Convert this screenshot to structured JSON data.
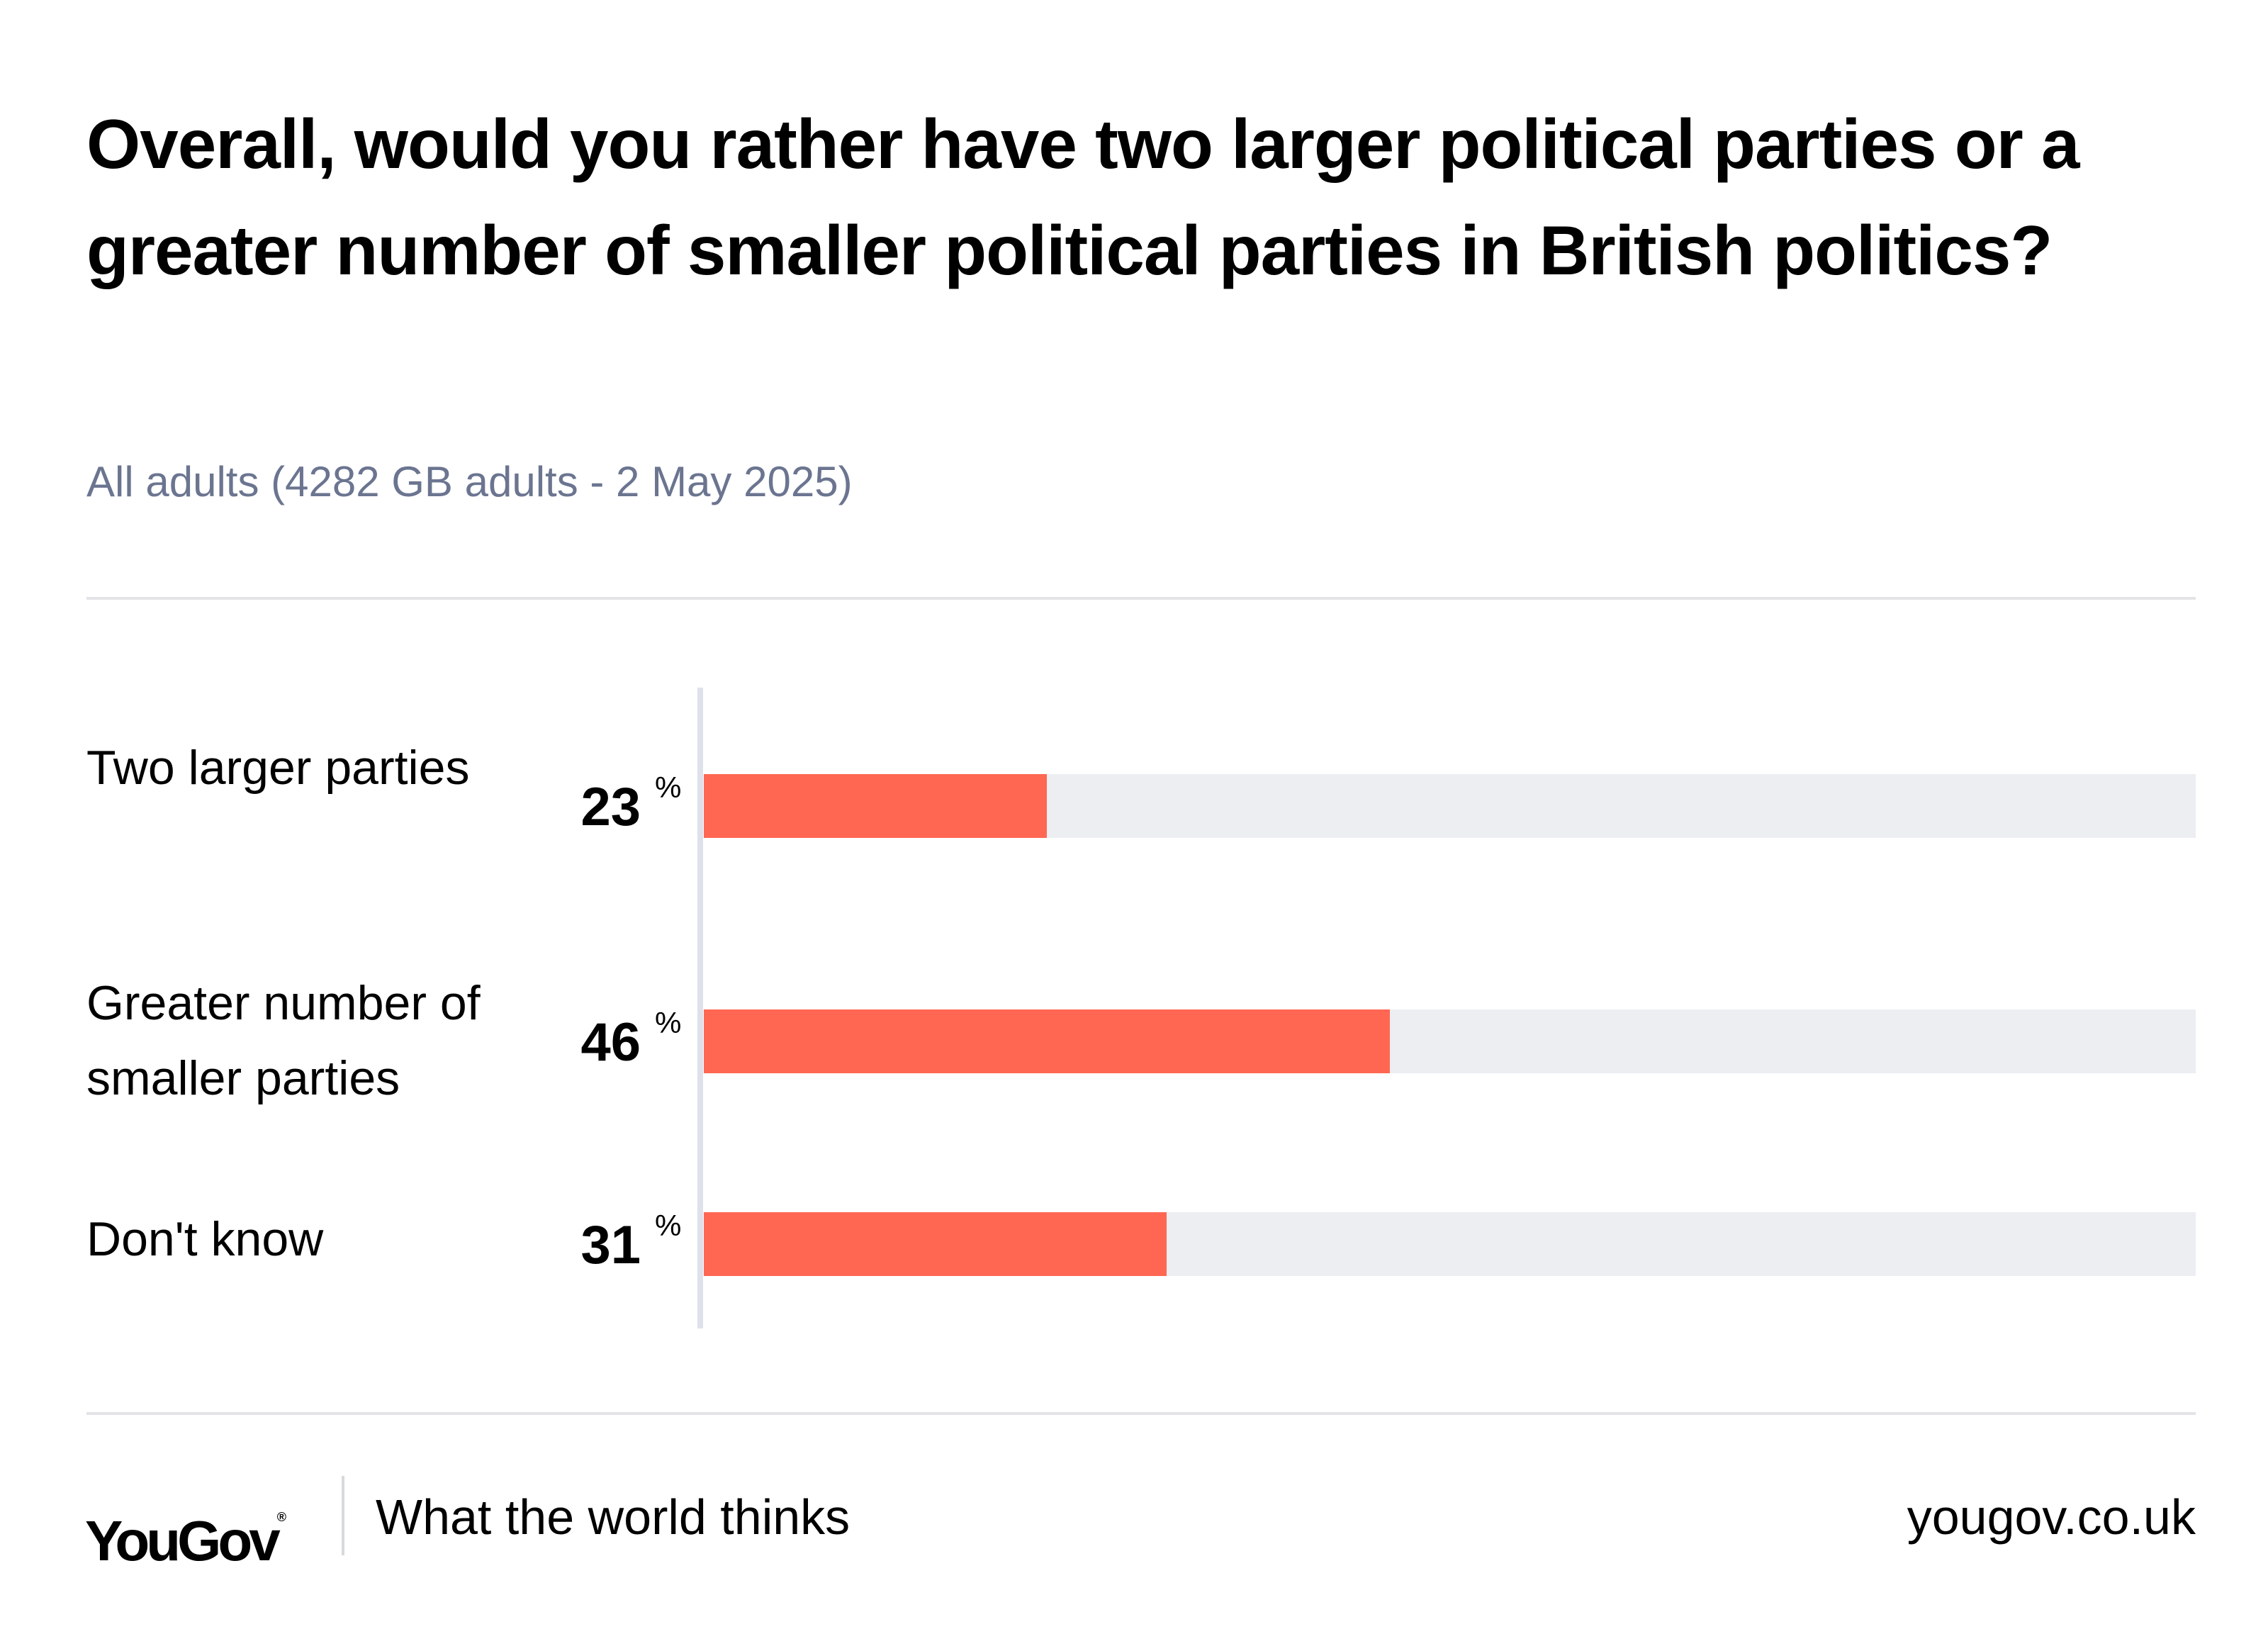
{
  "chart_data": {
    "type": "bar",
    "orientation": "horizontal",
    "title": "Overall, would you rather have two larger political parties or a greater number of smaller political parties in British politics?",
    "subtitle": "All adults (4282 GB adults - 2 May 2025)",
    "categories": [
      "Two larger parties",
      "Greater number of smaller parties",
      "Don't know"
    ],
    "values": [
      23,
      46,
      31
    ],
    "value_suffix": "%",
    "xlim": [
      0,
      100
    ],
    "bar_color": "#ff6753",
    "track_color": "#edeef2",
    "grid": false,
    "legend": "none"
  },
  "footer": {
    "logo": "YouGov",
    "logo_mark": "®",
    "tagline": "What the world thinks",
    "site": "yougov.co.uk"
  }
}
